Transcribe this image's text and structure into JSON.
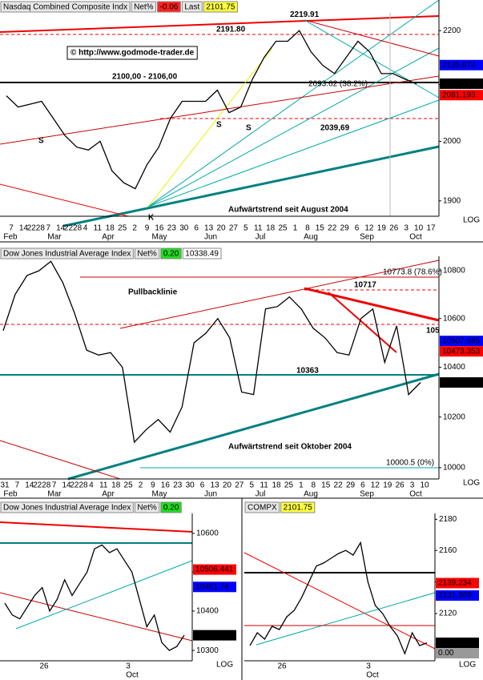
{
  "chart_data": [
    {
      "type": "line",
      "title": "Nasdaq Combined Composite Indx",
      "net_label": "Net%",
      "net_value": -0.06,
      "last_label": "Last",
      "last_value": 2101.75,
      "log_scale": true,
      "scale_label": "LOG",
      "ylim": [
        1875,
        2234
      ],
      "yticks": [
        2200,
        2100,
        2000,
        1900
      ],
      "color": "#000000",
      "x_labels": [
        "7",
        "14",
        "2228",
        "7",
        "14",
        "2228",
        "4",
        "11",
        "18",
        "25",
        "2",
        "9",
        "16",
        "23",
        "30",
        "6",
        "13",
        "20",
        "27",
        "5",
        "11",
        "18",
        "25",
        "1",
        "8",
        "15",
        "22",
        "29",
        "6",
        "12",
        "19",
        "26",
        "3",
        "10",
        "17"
      ],
      "months": [
        "Feb",
        "Mar",
        "Apr",
        "May",
        "Jun",
        "Jul",
        "Aug",
        "Sep",
        "Oct"
      ],
      "values": [
        2080,
        2060,
        2065,
        2070,
        2040,
        2010,
        1990,
        1985,
        2000,
        1950,
        1930,
        1920,
        1960,
        1990,
        2040,
        2070,
        2070,
        2070,
        2090,
        2050,
        2060,
        2110,
        2150,
        2180,
        2180,
        2200,
        2160,
        2135,
        2120,
        2150,
        2180,
        2160,
        2120,
        2120,
        2110,
        2101.75
      ],
      "levels": [
        {
          "value": 2219.91,
          "label": "2219.91"
        },
        {
          "value": 2191.8,
          "label": "2191.80"
        }
      ],
      "annotations": [
        "© http://www.godmode-trader.de",
        "2100,00 - 2106,00",
        "2093.62 (38.2%)",
        "2039,69",
        "Aufwärtstrend seit August 2004",
        "S",
        "S",
        "S",
        "K"
      ],
      "price_boxes": [
        {
          "value": 2135.674,
          "color": "#0000ff"
        },
        {
          "value": 2101.75,
          "color": "#000000"
        },
        {
          "value": 2081.193,
          "color": "#ff0000"
        }
      ]
    },
    {
      "type": "line",
      "title": "Dow Jones Industrial Average Index",
      "net_label": "Net%",
      "net_value": {
        "value": 0.2,
        "label": "0.20"
      },
      "last_value": 10338.49,
      "log_scale": true,
      "scale_label": "LOG",
      "ylim": [
        9956,
        10844
      ],
      "yticks": [
        10800,
        10600,
        10400,
        10200,
        10000
      ],
      "color": "#000000",
      "x_labels": [
        "31",
        "7",
        "14",
        "2228",
        "7",
        "14",
        "2228",
        "4",
        "11",
        "18",
        "25",
        "2",
        "9",
        "16",
        "23",
        "30",
        "6",
        "13",
        "20",
        "27",
        "5",
        "11",
        "18",
        "25",
        "1",
        "8",
        "15",
        "22",
        "29",
        "6",
        "12",
        "19",
        "26",
        "3",
        "10"
      ],
      "months": [
        "Feb",
        "Mar",
        "Apr",
        "May",
        "Jun",
        "Jul",
        "Aug",
        "Sep",
        "Oct"
      ],
      "values": [
        10550,
        10700,
        10780,
        10800,
        10840,
        10750,
        10620,
        10470,
        10450,
        10460,
        10400,
        10100,
        10150,
        10190,
        10140,
        10240,
        10500,
        10540,
        10600,
        10520,
        10300,
        10290,
        10640,
        10650,
        10690,
        10640,
        10560,
        10520,
        10460,
        10450,
        10600,
        10640,
        10420,
        10570,
        10290,
        10338.49
      ],
      "levels": [
        {
          "value": 10717,
          "label": "10717"
        },
        {
          "value": 10363,
          "label": "10363"
        }
      ],
      "annotations": [
        "Pullbacklinie",
        "10773.8 (78.6%)",
        "105",
        "Aufwärtstrend seit Oktober 2004",
        "10000.5 (0%)"
      ],
      "price_boxes": [
        {
          "value": 10507.685,
          "color": "#0000ff"
        },
        {
          "value": 10473.353,
          "color": "#ff0000"
        },
        {
          "value": 10338.49,
          "color": "#000000"
        }
      ]
    },
    {
      "type": "line",
      "title": "Dow Jones Industrial Average Index",
      "net_label": "Net%",
      "net_value": {
        "value": 0.2,
        "label": "0.20"
      },
      "log_scale": true,
      "scale_label": "LOG",
      "ylim": [
        10274,
        10652
      ],
      "yticks": [
        10600,
        10500,
        10400,
        10300
      ],
      "color": "#000000",
      "x_labels": [
        "26",
        "3"
      ],
      "months": [
        "Oct"
      ],
      "values": [
        10420,
        10390,
        10380,
        10410,
        10440,
        10460,
        10400,
        10430,
        10480,
        10440,
        10470,
        10500,
        10560,
        10570,
        10550,
        10560,
        10530,
        10500,
        10430,
        10360,
        10390,
        10320,
        10300,
        10310,
        10338.49
      ],
      "price_boxes": [
        {
          "value": 10506.441,
          "color": "#ff0000"
        },
        {
          "value": 10461.74,
          "color": "#0000ff"
        },
        {
          "value": 10338.49,
          "color": "#000000"
        }
      ]
    },
    {
      "type": "line",
      "title": "COMPX",
      "last_value": 2101.75,
      "log_scale": true,
      "scale_label": "LOG",
      "ylim": [
        2090.6,
        2183.8
      ],
      "yticks": [
        2180,
        2160,
        2140,
        2120
      ],
      "color": "#000000",
      "x_labels": [
        "26",
        "3"
      ],
      "months": [
        "Oct"
      ],
      "values": [
        2100,
        2108,
        2104,
        2112,
        2110,
        2118,
        2122,
        2130,
        2140,
        2150,
        2152,
        2155,
        2158,
        2160,
        2157,
        2165,
        2140,
        2125,
        2120,
        2112,
        2106,
        2095,
        2108,
        2100,
        2101.75
      ],
      "price_boxes": [
        {
          "value": 2139.234,
          "color": "#ff0000"
        },
        {
          "value": 2131.369,
          "color": "#0000ff"
        },
        {
          "value": 2101.75,
          "color": "#000000"
        },
        {
          "value": 0,
          "label": "0.00",
          "color": "#999999"
        }
      ]
    }
  ]
}
